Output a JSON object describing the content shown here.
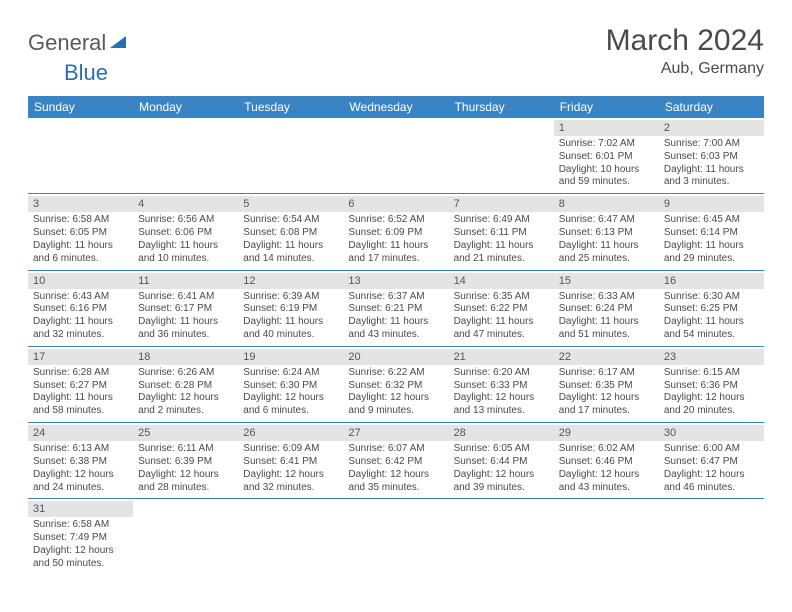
{
  "logo": {
    "general": "General",
    "blue": "Blue"
  },
  "title": "March 2024",
  "location": "Aub, Germany",
  "colors": {
    "header_bg": "#3b84c4",
    "header_text": "#ffffff",
    "daynum_bg": "#e4e4e4",
    "week_border": "#3b84c4",
    "text": "#4a4a4a",
    "logo_blue": "#2b6fb0"
  },
  "weekdays": [
    "Sunday",
    "Monday",
    "Tuesday",
    "Wednesday",
    "Thursday",
    "Friday",
    "Saturday"
  ],
  "weeks": [
    [
      null,
      null,
      null,
      null,
      null,
      {
        "n": "1",
        "sr": "Sunrise: 7:02 AM",
        "ss": "Sunset: 6:01 PM",
        "dl1": "Daylight: 10 hours",
        "dl2": "and 59 minutes."
      },
      {
        "n": "2",
        "sr": "Sunrise: 7:00 AM",
        "ss": "Sunset: 6:03 PM",
        "dl1": "Daylight: 11 hours",
        "dl2": "and 3 minutes."
      }
    ],
    [
      {
        "n": "3",
        "sr": "Sunrise: 6:58 AM",
        "ss": "Sunset: 6:05 PM",
        "dl1": "Daylight: 11 hours",
        "dl2": "and 6 minutes."
      },
      {
        "n": "4",
        "sr": "Sunrise: 6:56 AM",
        "ss": "Sunset: 6:06 PM",
        "dl1": "Daylight: 11 hours",
        "dl2": "and 10 minutes."
      },
      {
        "n": "5",
        "sr": "Sunrise: 6:54 AM",
        "ss": "Sunset: 6:08 PM",
        "dl1": "Daylight: 11 hours",
        "dl2": "and 14 minutes."
      },
      {
        "n": "6",
        "sr": "Sunrise: 6:52 AM",
        "ss": "Sunset: 6:09 PM",
        "dl1": "Daylight: 11 hours",
        "dl2": "and 17 minutes."
      },
      {
        "n": "7",
        "sr": "Sunrise: 6:49 AM",
        "ss": "Sunset: 6:11 PM",
        "dl1": "Daylight: 11 hours",
        "dl2": "and 21 minutes."
      },
      {
        "n": "8",
        "sr": "Sunrise: 6:47 AM",
        "ss": "Sunset: 6:13 PM",
        "dl1": "Daylight: 11 hours",
        "dl2": "and 25 minutes."
      },
      {
        "n": "9",
        "sr": "Sunrise: 6:45 AM",
        "ss": "Sunset: 6:14 PM",
        "dl1": "Daylight: 11 hours",
        "dl2": "and 29 minutes."
      }
    ],
    [
      {
        "n": "10",
        "sr": "Sunrise: 6:43 AM",
        "ss": "Sunset: 6:16 PM",
        "dl1": "Daylight: 11 hours",
        "dl2": "and 32 minutes."
      },
      {
        "n": "11",
        "sr": "Sunrise: 6:41 AM",
        "ss": "Sunset: 6:17 PM",
        "dl1": "Daylight: 11 hours",
        "dl2": "and 36 minutes."
      },
      {
        "n": "12",
        "sr": "Sunrise: 6:39 AM",
        "ss": "Sunset: 6:19 PM",
        "dl1": "Daylight: 11 hours",
        "dl2": "and 40 minutes."
      },
      {
        "n": "13",
        "sr": "Sunrise: 6:37 AM",
        "ss": "Sunset: 6:21 PM",
        "dl1": "Daylight: 11 hours",
        "dl2": "and 43 minutes."
      },
      {
        "n": "14",
        "sr": "Sunrise: 6:35 AM",
        "ss": "Sunset: 6:22 PM",
        "dl1": "Daylight: 11 hours",
        "dl2": "and 47 minutes."
      },
      {
        "n": "15",
        "sr": "Sunrise: 6:33 AM",
        "ss": "Sunset: 6:24 PM",
        "dl1": "Daylight: 11 hours",
        "dl2": "and 51 minutes."
      },
      {
        "n": "16",
        "sr": "Sunrise: 6:30 AM",
        "ss": "Sunset: 6:25 PM",
        "dl1": "Daylight: 11 hours",
        "dl2": "and 54 minutes."
      }
    ],
    [
      {
        "n": "17",
        "sr": "Sunrise: 6:28 AM",
        "ss": "Sunset: 6:27 PM",
        "dl1": "Daylight: 11 hours",
        "dl2": "and 58 minutes."
      },
      {
        "n": "18",
        "sr": "Sunrise: 6:26 AM",
        "ss": "Sunset: 6:28 PM",
        "dl1": "Daylight: 12 hours",
        "dl2": "and 2 minutes."
      },
      {
        "n": "19",
        "sr": "Sunrise: 6:24 AM",
        "ss": "Sunset: 6:30 PM",
        "dl1": "Daylight: 12 hours",
        "dl2": "and 6 minutes."
      },
      {
        "n": "20",
        "sr": "Sunrise: 6:22 AM",
        "ss": "Sunset: 6:32 PM",
        "dl1": "Daylight: 12 hours",
        "dl2": "and 9 minutes."
      },
      {
        "n": "21",
        "sr": "Sunrise: 6:20 AM",
        "ss": "Sunset: 6:33 PM",
        "dl1": "Daylight: 12 hours",
        "dl2": "and 13 minutes."
      },
      {
        "n": "22",
        "sr": "Sunrise: 6:17 AM",
        "ss": "Sunset: 6:35 PM",
        "dl1": "Daylight: 12 hours",
        "dl2": "and 17 minutes."
      },
      {
        "n": "23",
        "sr": "Sunrise: 6:15 AM",
        "ss": "Sunset: 6:36 PM",
        "dl1": "Daylight: 12 hours",
        "dl2": "and 20 minutes."
      }
    ],
    [
      {
        "n": "24",
        "sr": "Sunrise: 6:13 AM",
        "ss": "Sunset: 6:38 PM",
        "dl1": "Daylight: 12 hours",
        "dl2": "and 24 minutes."
      },
      {
        "n": "25",
        "sr": "Sunrise: 6:11 AM",
        "ss": "Sunset: 6:39 PM",
        "dl1": "Daylight: 12 hours",
        "dl2": "and 28 minutes."
      },
      {
        "n": "26",
        "sr": "Sunrise: 6:09 AM",
        "ss": "Sunset: 6:41 PM",
        "dl1": "Daylight: 12 hours",
        "dl2": "and 32 minutes."
      },
      {
        "n": "27",
        "sr": "Sunrise: 6:07 AM",
        "ss": "Sunset: 6:42 PM",
        "dl1": "Daylight: 12 hours",
        "dl2": "and 35 minutes."
      },
      {
        "n": "28",
        "sr": "Sunrise: 6:05 AM",
        "ss": "Sunset: 6:44 PM",
        "dl1": "Daylight: 12 hours",
        "dl2": "and 39 minutes."
      },
      {
        "n": "29",
        "sr": "Sunrise: 6:02 AM",
        "ss": "Sunset: 6:46 PM",
        "dl1": "Daylight: 12 hours",
        "dl2": "and 43 minutes."
      },
      {
        "n": "30",
        "sr": "Sunrise: 6:00 AM",
        "ss": "Sunset: 6:47 PM",
        "dl1": "Daylight: 12 hours",
        "dl2": "and 46 minutes."
      }
    ],
    [
      {
        "n": "31",
        "sr": "Sunrise: 6:58 AM",
        "ss": "Sunset: 7:49 PM",
        "dl1": "Daylight: 12 hours",
        "dl2": "and 50 minutes."
      },
      null,
      null,
      null,
      null,
      null,
      null
    ]
  ]
}
